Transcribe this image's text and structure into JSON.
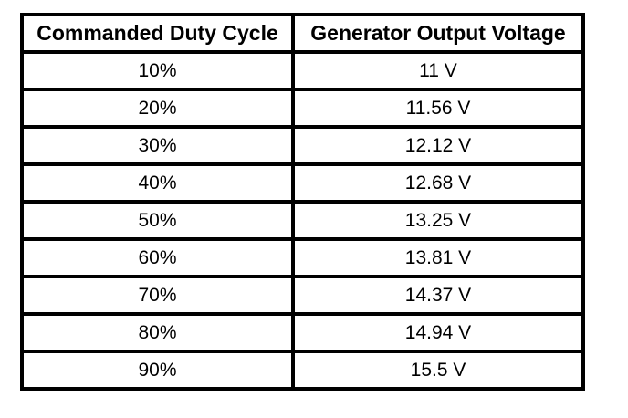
{
  "table": {
    "columns": [
      "Commanded Duty Cycle",
      "Generator Output Voltage"
    ],
    "rows": [
      [
        "10%",
        "11 V"
      ],
      [
        "20%",
        "11.56 V"
      ],
      [
        "30%",
        "12.12 V"
      ],
      [
        "40%",
        "12.68 V"
      ],
      [
        "50%",
        "13.25 V"
      ],
      [
        "60%",
        "13.81 V"
      ],
      [
        "70%",
        "14.37 V"
      ],
      [
        "80%",
        "14.94 V"
      ],
      [
        "90%",
        "15.5 V"
      ]
    ]
  },
  "chart_data": {
    "type": "table",
    "title": "",
    "columns": [
      "Commanded Duty Cycle",
      "Generator Output Voltage"
    ],
    "rows": [
      [
        "10%",
        "11 V"
      ],
      [
        "20%",
        "11.56 V"
      ],
      [
        "30%",
        "12.12 V"
      ],
      [
        "40%",
        "12.68 V"
      ],
      [
        "50%",
        "13.25 V"
      ],
      [
        "60%",
        "13.81 V"
      ],
      [
        "70%",
        "14.37 V"
      ],
      [
        "80%",
        "14.94 V"
      ],
      [
        "90%",
        "15.5 V"
      ]
    ],
    "series": [
      {
        "name": "Commanded Duty Cycle (%)",
        "values": [
          10,
          20,
          30,
          40,
          50,
          60,
          70,
          80,
          90
        ]
      },
      {
        "name": "Generator Output Voltage (V)",
        "values": [
          11,
          11.56,
          12.12,
          12.68,
          13.25,
          13.81,
          14.37,
          14.94,
          15.5
        ]
      }
    ],
    "legend_position": "none",
    "grid": true
  },
  "colors": {
    "border": "#000000",
    "text": "#000000",
    "background": "#ffffff"
  }
}
